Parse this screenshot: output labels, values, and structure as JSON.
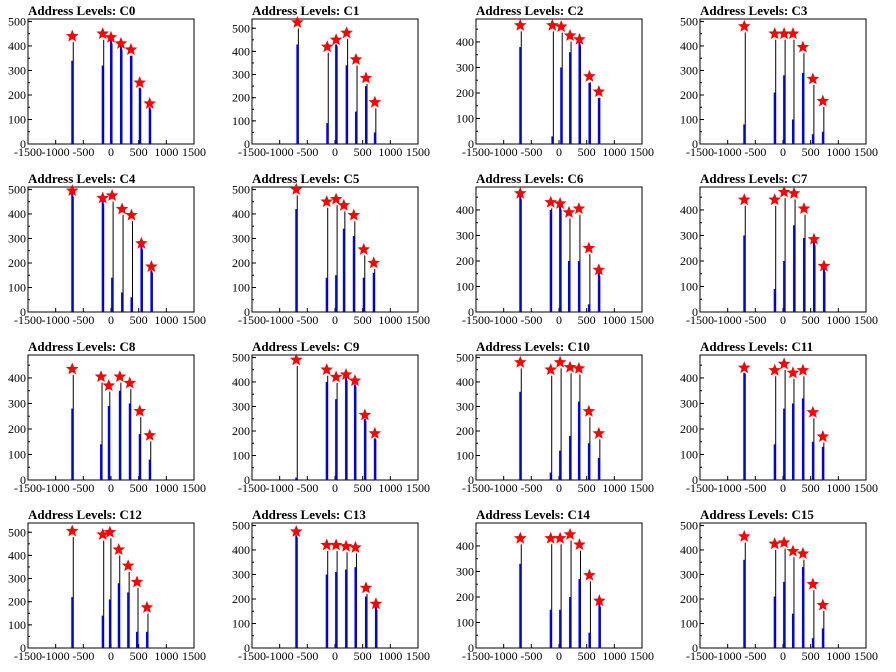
{
  "figure": {
    "title_prefix": "Address Levels: ",
    "colors": {
      "bar": "#0000ff",
      "stem": "#000000",
      "marker": "#ff0000",
      "frame": "#000000"
    }
  },
  "chart_data": [
    {
      "type": "bar",
      "title": "Address Levels: C0",
      "xlim": [
        -1500,
        1500
      ],
      "ylim": [
        0,
        510
      ],
      "xticks": [
        -1500,
        -1000,
        -500,
        0,
        500,
        1000,
        1500
      ],
      "yticks": [
        0,
        100,
        200,
        300,
        400,
        500
      ],
      "x": [
        -700,
        -150,
        0,
        180,
        360,
        520,
        700
      ],
      "values": [
        340,
        320,
        430,
        400,
        360,
        230,
        150
      ],
      "peaks": [
        440,
        450,
        435,
        410,
        385,
        250,
        165
      ]
    },
    {
      "type": "bar",
      "title": "Address Levels: C1",
      "xlim": [
        -1500,
        1500
      ],
      "ylim": [
        0,
        540
      ],
      "xticks": [
        -1500,
        -1000,
        -500,
        0,
        500,
        1000,
        1500
      ],
      "yticks": [
        0,
        100,
        200,
        300,
        400,
        500
      ],
      "x": [
        -680,
        -140,
        20,
        210,
        380,
        560,
        720
      ],
      "values": [
        430,
        90,
        430,
        340,
        140,
        250,
        50
      ],
      "peaks": [
        525,
        420,
        450,
        480,
        365,
        285,
        180
      ]
    },
    {
      "type": "bar",
      "title": "Address Levels: C2",
      "xlim": [
        -1500,
        1500
      ],
      "ylim": [
        0,
        490
      ],
      "xticks": [
        -1500,
        -1000,
        -500,
        0,
        500,
        1000,
        1500
      ],
      "yticks": [
        0,
        100,
        200,
        300,
        400
      ],
      "x": [
        -700,
        -120,
        40,
        200,
        370,
        550,
        720
      ],
      "values": [
        380,
        30,
        300,
        360,
        400,
        240,
        180
      ],
      "peaks": [
        465,
        465,
        460,
        425,
        410,
        265,
        205
      ]
    },
    {
      "type": "bar",
      "title": "Address Levels: C3",
      "xlim": [
        -1500,
        1500
      ],
      "ylim": [
        0,
        510
      ],
      "xticks": [
        -1500,
        -1000,
        -500,
        0,
        500,
        1000,
        1500
      ],
      "yticks": [
        0,
        100,
        200,
        300,
        400,
        500
      ],
      "x": [
        -700,
        -150,
        20,
        180,
        360,
        540,
        720
      ],
      "values": [
        80,
        210,
        280,
        100,
        290,
        40,
        50
      ],
      "peaks": [
        480,
        450,
        450,
        450,
        395,
        265,
        175
      ]
    },
    {
      "type": "bar",
      "title": "Address Levels: C4",
      "xlim": [
        -1500,
        1500
      ],
      "ylim": [
        0,
        510
      ],
      "xticks": [
        -1500,
        -1000,
        -500,
        0,
        500,
        1000,
        1500
      ],
      "yticks": [
        0,
        100,
        200,
        300,
        400,
        500
      ],
      "x": [
        -700,
        -150,
        20,
        200,
        370,
        550,
        730
      ],
      "values": [
        490,
        460,
        140,
        80,
        60,
        280,
        170
      ],
      "peaks": [
        495,
        465,
        475,
        420,
        395,
        280,
        185
      ]
    },
    {
      "type": "bar",
      "title": "Address Levels: C5",
      "xlim": [
        -1500,
        1500
      ],
      "ylim": [
        0,
        510
      ],
      "xticks": [
        -1500,
        -1000,
        -500,
        0,
        500,
        1000,
        1500
      ],
      "yticks": [
        0,
        100,
        200,
        300,
        400,
        500
      ],
      "x": [
        -700,
        -150,
        20,
        160,
        340,
        520,
        700
      ],
      "values": [
        420,
        140,
        150,
        340,
        310,
        140,
        160
      ],
      "peaks": [
        500,
        450,
        460,
        435,
        395,
        255,
        200
      ]
    },
    {
      "type": "bar",
      "title": "Address Levels: C6",
      "xlim": [
        -1500,
        1500
      ],
      "ylim": [
        0,
        490
      ],
      "xticks": [
        -1500,
        -1000,
        -500,
        0,
        500,
        1000,
        1500
      ],
      "yticks": [
        0,
        100,
        200,
        300,
        400
      ],
      "x": [
        -700,
        -150,
        20,
        180,
        360,
        540,
        720
      ],
      "values": [
        460,
        400,
        420,
        200,
        200,
        30,
        180
      ],
      "peaks": [
        465,
        430,
        425,
        390,
        405,
        250,
        165
      ]
    },
    {
      "type": "bar",
      "title": "Address Levels: C7",
      "xlim": [
        -1500,
        1500
      ],
      "ylim": [
        0,
        490
      ],
      "xticks": [
        -1500,
        -1000,
        -500,
        0,
        500,
        1000,
        1500
      ],
      "yticks": [
        0,
        100,
        200,
        300,
        400
      ],
      "x": [
        -700,
        -150,
        20,
        200,
        380,
        560,
        740
      ],
      "values": [
        300,
        90,
        200,
        340,
        290,
        280,
        170
      ],
      "peaks": [
        440,
        440,
        470,
        465,
        405,
        285,
        180
      ]
    },
    {
      "type": "bar",
      "title": "Address Levels: C8",
      "xlim": [
        -1500,
        1500
      ],
      "ylim": [
        0,
        490
      ],
      "xticks": [
        -1500,
        -1000,
        -500,
        0,
        500,
        1000,
        1500
      ],
      "yticks": [
        0,
        100,
        200,
        300,
        400
      ],
      "x": [
        -700,
        -180,
        -40,
        160,
        340,
        520,
        700
      ],
      "values": [
        280,
        140,
        290,
        350,
        300,
        180,
        80
      ],
      "peaks": [
        435,
        405,
        370,
        405,
        380,
        270,
        175
      ]
    },
    {
      "type": "bar",
      "title": "Address Levels: C9",
      "xlim": [
        -1500,
        1500
      ],
      "ylim": [
        0,
        510
      ],
      "xticks": [
        -1500,
        -1000,
        -500,
        0,
        500,
        1000,
        1500
      ],
      "yticks": [
        0,
        100,
        200,
        300,
        400,
        500
      ],
      "x": [
        -700,
        -150,
        20,
        200,
        360,
        540,
        720
      ],
      "values": [
        10,
        400,
        330,
        420,
        390,
        250,
        170
      ],
      "peaks": [
        490,
        450,
        420,
        430,
        405,
        265,
        190
      ]
    },
    {
      "type": "bar",
      "title": "Address Levels: C10",
      "xlim": [
        -1500,
        1500
      ],
      "ylim": [
        0,
        510
      ],
      "xticks": [
        -1500,
        -1000,
        -500,
        0,
        500,
        1000,
        1500
      ],
      "yticks": [
        0,
        100,
        200,
        300,
        400,
        500
      ],
      "x": [
        -700,
        -150,
        20,
        200,
        360,
        540,
        720
      ],
      "values": [
        360,
        30,
        120,
        180,
        320,
        150,
        90
      ],
      "peaks": [
        480,
        450,
        480,
        460,
        455,
        280,
        190
      ]
    },
    {
      "type": "bar",
      "title": "Address Levels: C11",
      "xlim": [
        -1500,
        1500
      ],
      "ylim": [
        0,
        490
      ],
      "xticks": [
        -1500,
        -1000,
        -500,
        0,
        500,
        1000,
        1500
      ],
      "yticks": [
        0,
        100,
        200,
        300,
        400
      ],
      "x": [
        -700,
        -150,
        20,
        180,
        360,
        540,
        720
      ],
      "values": [
        420,
        140,
        280,
        300,
        320,
        150,
        130
      ],
      "peaks": [
        440,
        430,
        455,
        420,
        430,
        265,
        170
      ]
    },
    {
      "type": "bar",
      "title": "Address Levels: C12",
      "xlim": [
        -1500,
        1500
      ],
      "ylim": [
        0,
        540
      ],
      "xticks": [
        -1500,
        -1000,
        -500,
        0,
        500,
        1000,
        1500
      ],
      "yticks": [
        0,
        100,
        200,
        300,
        400,
        500
      ],
      "x": [
        -700,
        -150,
        -20,
        140,
        310,
        470,
        650
      ],
      "values": [
        220,
        140,
        210,
        280,
        240,
        70,
        70
      ],
      "peaks": [
        505,
        490,
        500,
        425,
        355,
        285,
        175
      ]
    },
    {
      "type": "bar",
      "title": "Address Levels: C13",
      "xlim": [
        -1500,
        1500
      ],
      "ylim": [
        0,
        510
      ],
      "xticks": [
        -1500,
        -1000,
        -500,
        0,
        500,
        1000,
        1500
      ],
      "yticks": [
        0,
        100,
        200,
        300,
        400,
        500
      ],
      "x": [
        -700,
        -150,
        20,
        200,
        370,
        560,
        740
      ],
      "values": [
        460,
        300,
        310,
        320,
        330,
        210,
        170
      ],
      "peaks": [
        475,
        420,
        420,
        415,
        410,
        245,
        180
      ]
    },
    {
      "type": "bar",
      "title": "Address Levels: C14",
      "xlim": [
        -1500,
        1500
      ],
      "ylim": [
        0,
        490
      ],
      "xticks": [
        -1500,
        -1000,
        -500,
        0,
        500,
        1000,
        1500
      ],
      "yticks": [
        0,
        100,
        200,
        300,
        400
      ],
      "x": [
        -700,
        -150,
        20,
        200,
        370,
        550,
        730
      ],
      "values": [
        330,
        150,
        150,
        200,
        270,
        60,
        180
      ],
      "peaks": [
        430,
        430,
        430,
        445,
        405,
        285,
        185
      ]
    },
    {
      "type": "bar",
      "title": "Address Levels: C15",
      "xlim": [
        -1500,
        1500
      ],
      "ylim": [
        0,
        510
      ],
      "xticks": [
        -1500,
        -1000,
        -500,
        0,
        500,
        1000,
        1500
      ],
      "yticks": [
        0,
        100,
        200,
        300,
        400,
        500
      ],
      "x": [
        -700,
        -150,
        20,
        180,
        360,
        540,
        720
      ],
      "values": [
        360,
        210,
        270,
        140,
        330,
        40,
        80
      ],
      "peaks": [
        455,
        425,
        430,
        395,
        385,
        260,
        175
      ]
    }
  ]
}
